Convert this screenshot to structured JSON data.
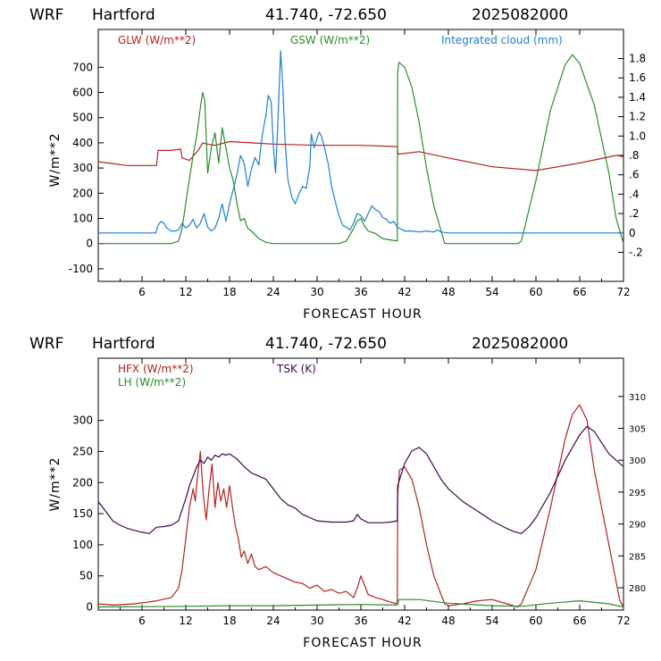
{
  "chart_data": [
    {
      "type": "line",
      "header": {
        "model": "WRF",
        "location": "Hartford",
        "coords": "41.740, -72.650",
        "run": "2025082000"
      },
      "xlabel": "FORECAST HOUR",
      "ylabel": "W/m**2",
      "xlim": [
        0,
        72
      ],
      "ylim": [
        -150,
        850
      ],
      "y2lim": [
        -0.5,
        2.1
      ],
      "x_ticks": [
        "6",
        "12",
        "18",
        "24",
        "30",
        "36",
        "42",
        "48",
        "54",
        "60",
        "66",
        "72"
      ],
      "y_ticks": [
        "-100",
        "0",
        "100",
        "200",
        "300",
        "400",
        "500",
        "600",
        "700"
      ],
      "y2_ticks": [
        "-.2",
        "0",
        ".2",
        ".4",
        ".6",
        ".8",
        "1.0",
        "1.2",
        "1.4",
        "1.6",
        "1.8"
      ],
      "grid": false,
      "legend_position": "top",
      "series": [
        {
          "name": "GLW (W/m**2)",
          "color": "#b22222",
          "axis": "left",
          "x": [
            0,
            4,
            8,
            8.2,
            10,
            11.3,
            11.5,
            12.5,
            13.7,
            14.3,
            15,
            16,
            18,
            21,
            24,
            30,
            36,
            41,
            41.1,
            44,
            48,
            54,
            60,
            66,
            71,
            72
          ],
          "y": [
            325,
            310,
            310,
            370,
            370,
            375,
            340,
            330,
            370,
            400,
            395,
            390,
            405,
            400,
            395,
            390,
            390,
            385,
            355,
            365,
            340,
            305,
            290,
            320,
            350,
            345
          ]
        },
        {
          "name": "GSW (W/m**2)",
          "color": "#2e8b2e",
          "axis": "left",
          "x": [
            0,
            10,
            11,
            11.5,
            12.2,
            13,
            13.5,
            14,
            14.3,
            14.6,
            15,
            15.5,
            16,
            16.5,
            17,
            17.5,
            18,
            18.5,
            19,
            19.5,
            20,
            20.5,
            21,
            22,
            23,
            24,
            33,
            34,
            35,
            35.5,
            36,
            36.5,
            37,
            38,
            39,
            40,
            41,
            41.05,
            41.2,
            42,
            43,
            44,
            45,
            46,
            47,
            47.5,
            57.5,
            58,
            60,
            62,
            64,
            65,
            66,
            68,
            70,
            71,
            72
          ],
          "y": [
            0,
            0,
            10,
            60,
            200,
            350,
            430,
            540,
            600,
            570,
            280,
            380,
            440,
            320,
            460,
            380,
            300,
            250,
            160,
            90,
            100,
            60,
            50,
            20,
            5,
            0,
            0,
            10,
            60,
            90,
            100,
            70,
            50,
            40,
            20,
            15,
            10,
            680,
            720,
            700,
            620,
            480,
            300,
            150,
            50,
            0,
            0,
            10,
            250,
            530,
            710,
            750,
            715,
            550,
            280,
            100,
            0
          ]
        },
        {
          "name": "Integrated cloud (mm)",
          "color": "#1f7fd6",
          "axis": "right",
          "x": [
            0,
            7.9,
            8.2,
            8.6,
            9,
            9.4,
            10,
            10.5,
            11,
            11.5,
            12,
            12.5,
            13,
            13.5,
            14,
            14.5,
            15,
            15.5,
            16,
            16.5,
            17,
            17.5,
            18,
            18.5,
            19,
            19.5,
            20,
            20.5,
            21,
            21.5,
            22,
            22.5,
            23,
            23.3,
            23.7,
            24,
            24.3,
            24.6,
            25,
            25.3,
            25.6,
            26,
            26.5,
            27,
            27.5,
            28,
            28.5,
            29,
            29.2,
            29.6,
            30,
            30.3,
            30.6,
            31,
            31.5,
            32,
            32.5,
            33,
            33.5,
            34,
            34.5,
            35,
            35.5,
            36,
            36.5,
            37,
            37.5,
            38,
            38.5,
            39,
            39.5,
            40,
            40.5,
            41,
            41.5,
            42,
            43,
            44,
            45,
            46,
            46.5,
            47,
            48,
            72
          ],
          "y": [
            0,
            0,
            0.08,
            0.12,
            0.1,
            0.05,
            0.02,
            0.02,
            0.03,
            0.1,
            0.05,
            0.08,
            0.14,
            0.05,
            0.1,
            0.2,
            0.06,
            0.02,
            0.05,
            0.15,
            0.3,
            0.12,
            0.3,
            0.45,
            0.6,
            0.8,
            0.72,
            0.48,
            0.66,
            0.78,
            0.7,
            1.02,
            1.22,
            1.42,
            1.35,
            0.9,
            0.62,
            1.1,
            1.88,
            1.52,
            0.95,
            0.55,
            0.38,
            0.3,
            0.4,
            0.48,
            0.46,
            0.68,
            1.02,
            0.88,
            0.98,
            1.04,
            1.0,
            0.88,
            0.72,
            0.48,
            0.32,
            0.18,
            0.08,
            0.06,
            0.03,
            0.1,
            0.2,
            0.18,
            0.12,
            0.2,
            0.28,
            0.24,
            0.22,
            0.16,
            0.14,
            0.1,
            0.12,
            0.06,
            0.04,
            0.02,
            0.02,
            0.01,
            0.02,
            0.01,
            0.03,
            0.01,
            0,
            0
          ]
        }
      ]
    },
    {
      "type": "line",
      "header": {
        "model": "WRF",
        "location": "Hartford",
        "coords": "41.740, -72.650",
        "run": "2025082000"
      },
      "xlabel": "FORECAST HOUR",
      "ylabel": "W/m**2",
      "xlim": [
        0,
        72
      ],
      "ylim": [
        -5,
        400
      ],
      "y2lim": [
        276.5,
        316
      ],
      "x_ticks": [
        "6",
        "12",
        "18",
        "24",
        "30",
        "36",
        "42",
        "48",
        "54",
        "60",
        "66",
        "72"
      ],
      "y_ticks": [
        "0",
        "50",
        "100",
        "150",
        "200",
        "250",
        "300"
      ],
      "y2_ticks": [
        "280",
        "285",
        "290",
        "295",
        "300",
        "305",
        "310"
      ],
      "grid": false,
      "legend_position": "top-left",
      "series": [
        {
          "name": "HFX (W/m**2)",
          "color": "#b22222",
          "axis": "left",
          "x": [
            0,
            2,
            5,
            7,
            8,
            10,
            11,
            11.5,
            12,
            12.5,
            13,
            13.3,
            13.6,
            14,
            14.4,
            14.8,
            15.2,
            15.6,
            16,
            16.4,
            16.8,
            17.2,
            17.6,
            18,
            18.4,
            18.8,
            19.2,
            19.6,
            20,
            20.5,
            21,
            21.5,
            22,
            23,
            24,
            25,
            26,
            27,
            28,
            29,
            30,
            31,
            32,
            33,
            34,
            35,
            35.5,
            36,
            36.5,
            37,
            38,
            39,
            40,
            41,
            41.05,
            41.3,
            42,
            43,
            44,
            45,
            46,
            47,
            47.5,
            48,
            50,
            52,
            54,
            56,
            57.5,
            58,
            60,
            62,
            64,
            65,
            66,
            67,
            68,
            70,
            71.5,
            72
          ],
          "y": [
            5,
            3,
            5,
            8,
            10,
            15,
            30,
            60,
            110,
            160,
            190,
            170,
            210,
            250,
            180,
            140,
            190,
            230,
            160,
            200,
            170,
            190,
            160,
            195,
            160,
            130,
            110,
            80,
            90,
            70,
            85,
            65,
            60,
            65,
            55,
            50,
            45,
            40,
            38,
            30,
            35,
            25,
            28,
            22,
            25,
            15,
            30,
            50,
            35,
            20,
            15,
            12,
            8,
            5,
            180,
            220,
            225,
            205,
            160,
            100,
            50,
            20,
            5,
            2,
            5,
            10,
            12,
            5,
            0,
            5,
            60,
            160,
            270,
            310,
            325,
            300,
            220,
            100,
            10,
            0
          ]
        },
        {
          "name": "LH (W/m**2)",
          "color": "#2e8b2e",
          "axis": "left",
          "x": [
            0,
            12,
            18,
            24,
            30,
            36,
            41,
            41.2,
            44,
            48,
            54,
            58,
            62,
            66,
            70,
            72
          ],
          "y": [
            0,
            1,
            2,
            2,
            3,
            4,
            3,
            12,
            12,
            6,
            2,
            1,
            6,
            10,
            5,
            0
          ]
        },
        {
          "name": "TSK (K)",
          "color": "#3c0a4a",
          "axis": "right",
          "x": [
            0,
            1,
            2,
            3,
            4,
            5,
            6,
            7,
            8,
            9,
            10,
            11,
            12,
            12.5,
            13,
            13.5,
            14,
            14.5,
            15,
            15.5,
            16,
            16.5,
            17,
            17.5,
            18,
            19,
            20,
            21,
            22,
            23,
            24,
            25,
            26,
            27,
            28,
            29,
            30,
            32,
            34,
            35,
            35.5,
            36,
            37,
            39,
            40,
            41,
            41.05,
            42,
            43,
            44,
            45,
            46,
            47,
            48,
            50,
            52,
            54,
            56,
            57,
            58,
            59,
            60,
            62,
            64,
            66,
            67,
            68,
            70,
            72
          ],
          "y": [
            293.5,
            292,
            290.5,
            289.8,
            289.3,
            289,
            288.7,
            288.5,
            289.5,
            289.6,
            289.8,
            290.5,
            294,
            296,
            297.5,
            299,
            300,
            299.5,
            300.5,
            300,
            300.8,
            300.5,
            301,
            300.8,
            301,
            300.2,
            299,
            298,
            297.5,
            297,
            295.5,
            294,
            293,
            292.5,
            291.5,
            291,
            290.5,
            290.3,
            290.3,
            290.5,
            291.5,
            290.8,
            290.2,
            290.2,
            290.3,
            290.5,
            296,
            299.5,
            301.5,
            302,
            301,
            299,
            297,
            295.5,
            293.5,
            292,
            290.5,
            289.3,
            288.8,
            288.5,
            289.5,
            291,
            295,
            300,
            304,
            305.3,
            304.5,
            301,
            299
          ]
        }
      ]
    }
  ]
}
